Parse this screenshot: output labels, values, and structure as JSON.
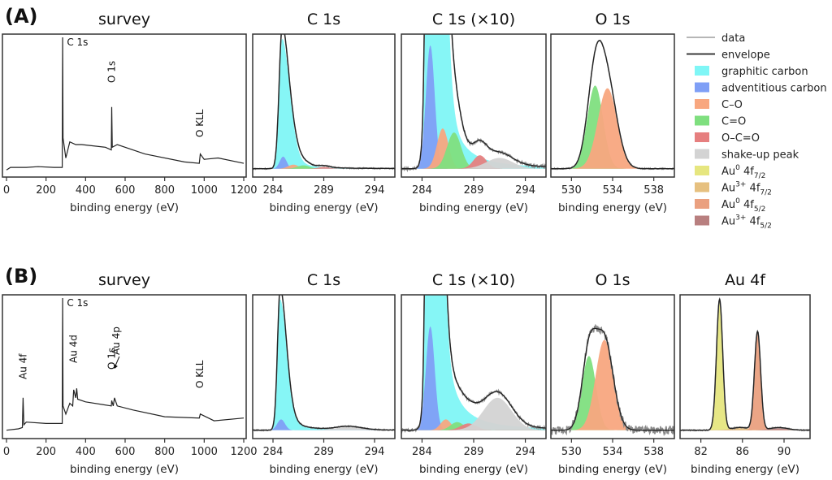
{
  "figure": {
    "rows": [
      {
        "label": "(A)"
      },
      {
        "label": "(B)"
      }
    ]
  },
  "legend": {
    "position": "right of row A",
    "items": [
      {
        "key": "data",
        "label": "data",
        "type": "line",
        "color": "#8a8a8a"
      },
      {
        "key": "envelope",
        "label": "envelope",
        "type": "line",
        "color": "#222222"
      },
      {
        "key": "graphitic",
        "label": "graphitic carbon",
        "type": "fill",
        "color": "#7ff6f6"
      },
      {
        "key": "adventitious",
        "label": "adventitious carbon",
        "type": "fill",
        "color": "#7f9ff6"
      },
      {
        "key": "CO",
        "label": "C–O",
        "type": "fill",
        "color": "#f8a77f"
      },
      {
        "key": "C=O",
        "label": "C=O",
        "type": "fill",
        "color": "#7fdf7f"
      },
      {
        "key": "OC=O",
        "label": "O–C=O",
        "type": "fill",
        "color": "#e67f7f"
      },
      {
        "key": "shakeup",
        "label": "shake-up peak",
        "type": "fill",
        "color": "#d3d3d3"
      },
      {
        "key": "Au0_72",
        "label": "Au",
        "sup": "0",
        "main": " 4f",
        "sub": "7/2",
        "type": "fill",
        "color": "#e6e67f"
      },
      {
        "key": "Au3_72",
        "label": "Au",
        "sup": "3+",
        "main": " 4f",
        "sub": "7/2",
        "type": "fill",
        "color": "#e6c07f"
      },
      {
        "key": "Au0_52",
        "label": "Au",
        "sup": "0",
        "main": " 4f",
        "sub": "5/2",
        "type": "fill",
        "color": "#eaa07f"
      },
      {
        "key": "Au3_52",
        "label": "Au",
        "sup": "3+",
        "main": " 4f",
        "sub": "5/2",
        "type": "fill",
        "color": "#b87f7f"
      }
    ]
  },
  "chart_data": [
    {
      "id": "A-survey",
      "row": "A",
      "type": "line",
      "title": "survey",
      "xlabel": "binding energy (eV)",
      "ylabel": "",
      "xlim": [
        0,
        1200
      ],
      "xticks": [
        0,
        200,
        400,
        600,
        800,
        1000,
        1200
      ],
      "grid": false,
      "annotations": [
        {
          "text": "C 1s",
          "x": 285
        },
        {
          "text": "O 1s",
          "x": 532,
          "rotated": true
        },
        {
          "text": "O KLL",
          "x": 978,
          "rotated": true
        }
      ],
      "series": [
        {
          "name": "data",
          "x": [
            0,
            20,
            100,
            160,
            240,
            282,
            284,
            286,
            300,
            320,
            350,
            380,
            500,
            530,
            532,
            535,
            560,
            700,
            900,
            975,
            980,
            1000,
            1070,
            1200
          ],
          "y": [
            0.01,
            0.03,
            0.03,
            0.035,
            0.03,
            0.03,
            1.0,
            0.25,
            0.1,
            0.22,
            0.2,
            0.2,
            0.18,
            0.16,
            0.48,
            0.18,
            0.2,
            0.13,
            0.07,
            0.06,
            0.13,
            0.09,
            0.1,
            0.06
          ]
        }
      ]
    },
    {
      "id": "A-C1s",
      "row": "A",
      "type": "area",
      "title": "C 1s",
      "xlabel": "binding energy (eV)",
      "xlim": [
        282,
        296
      ],
      "xticks": [
        284,
        289,
        294
      ],
      "grid": false,
      "components": [
        {
          "name": "graphitic carbon",
          "center": 284.9,
          "height": 0.97,
          "fwhm": 0.7,
          "asym": true
        },
        {
          "name": "adventitious carbon",
          "center": 285.0,
          "height": 0.09,
          "fwhm": 0.8
        },
        {
          "name": "C–O",
          "center": 286.0,
          "height": 0.03,
          "fwhm": 1.2
        },
        {
          "name": "C=O",
          "center": 287.0,
          "height": 0.025,
          "fwhm": 1.4
        },
        {
          "name": "O–C=O",
          "center": 289.0,
          "height": 0.012,
          "fwhm": 1.4
        }
      ]
    },
    {
      "id": "A-C1s-x10",
      "row": "A",
      "type": "area",
      "title": "C 1s (×10)",
      "xlabel": "binding energy (eV)",
      "xlim": [
        282,
        296
      ],
      "xticks": [
        284,
        289,
        294
      ],
      "grid": false,
      "components": [
        {
          "name": "graphitic carbon",
          "center": 284.9,
          "height": 9.7,
          "fwhm": 0.7,
          "asym": true
        },
        {
          "name": "adventitious carbon",
          "center": 284.8,
          "height": 0.92,
          "fwhm": 1.0
        },
        {
          "name": "C–O",
          "center": 286.0,
          "height": 0.3,
          "fwhm": 1.3
        },
        {
          "name": "C=O",
          "center": 287.1,
          "height": 0.27,
          "fwhm": 1.6
        },
        {
          "name": "O–C=O",
          "center": 289.6,
          "height": 0.1,
          "fwhm": 1.5
        },
        {
          "name": "shake-up peak",
          "center": 291.5,
          "height": 0.08,
          "fwhm": 3.0
        }
      ]
    },
    {
      "id": "A-O1s",
      "row": "A",
      "type": "area",
      "title": "O 1s",
      "xlabel": "binding energy (eV)",
      "xlim": [
        528,
        540
      ],
      "xticks": [
        530,
        534,
        538
      ],
      "grid": false,
      "components": [
        {
          "name": "C=O",
          "center": 532.3,
          "height": 0.62,
          "fwhm": 1.8
        },
        {
          "name": "C–O",
          "center": 533.5,
          "height": 0.6,
          "fwhm": 2.2
        }
      ]
    },
    {
      "id": "B-survey",
      "row": "B",
      "type": "line",
      "title": "survey",
      "xlabel": "binding energy (eV)",
      "xlim": [
        0,
        1200
      ],
      "xticks": [
        0,
        200,
        400,
        600,
        800,
        1000,
        1200
      ],
      "grid": false,
      "annotations": [
        {
          "text": "C 1s",
          "x": 285
        },
        {
          "text": "Au 4f",
          "x": 84,
          "rotated": true
        },
        {
          "text": "Au 4d",
          "x": 340,
          "rotated": true
        },
        {
          "text": "O 1s",
          "x": 532,
          "rotated": true
        },
        {
          "text": "Au 4p",
          "x": 546,
          "rotated": true,
          "arrow": true
        },
        {
          "text": "O KLL",
          "x": 978,
          "rotated": true
        }
      ],
      "series": [
        {
          "name": "data",
          "x": [
            0,
            60,
            80,
            84,
            88,
            100,
            200,
            282,
            284,
            286,
            300,
            320,
            335,
            340,
            350,
            355,
            360,
            400,
            530,
            532,
            540,
            546,
            560,
            640,
            800,
            975,
            980,
            1050,
            1200
          ],
          "y": [
            0.02,
            0.03,
            0.04,
            0.26,
            0.06,
            0.08,
            0.07,
            0.07,
            1.0,
            0.2,
            0.14,
            0.22,
            0.2,
            0.32,
            0.26,
            0.33,
            0.25,
            0.23,
            0.2,
            0.24,
            0.2,
            0.26,
            0.2,
            0.17,
            0.12,
            0.11,
            0.14,
            0.09,
            0.11
          ]
        }
      ]
    },
    {
      "id": "B-C1s",
      "row": "B",
      "type": "area",
      "title": "C 1s",
      "xlabel": "binding energy (eV)",
      "xlim": [
        282,
        296
      ],
      "xticks": [
        284,
        289,
        294
      ],
      "grid": false,
      "components": [
        {
          "name": "graphitic carbon",
          "center": 284.7,
          "height": 0.97,
          "fwhm": 0.6,
          "asym": true
        },
        {
          "name": "adventitious carbon",
          "center": 284.8,
          "height": 0.08,
          "fwhm": 0.9
        },
        {
          "name": "shake-up peak",
          "center": 291.5,
          "height": 0.025,
          "fwhm": 3.0
        }
      ]
    },
    {
      "id": "B-C1s-x10",
      "row": "B",
      "type": "area",
      "title": "C 1s (×10)",
      "xlabel": "binding energy (eV)",
      "xlim": [
        282,
        296
      ],
      "xticks": [
        284,
        289,
        294
      ],
      "grid": false,
      "components": [
        {
          "name": "graphitic carbon",
          "center": 284.8,
          "height": 9.7,
          "fwhm": 0.6,
          "asym": true
        },
        {
          "name": "adventitious carbon",
          "center": 284.8,
          "height": 0.77,
          "fwhm": 1.0
        },
        {
          "name": "C–O",
          "center": 286.3,
          "height": 0.08,
          "fwhm": 1.2
        },
        {
          "name": "C=O",
          "center": 287.4,
          "height": 0.06,
          "fwhm": 1.5
        },
        {
          "name": "O–C=O",
          "center": 288.5,
          "height": 0.05,
          "fwhm": 1.8
        },
        {
          "name": "shake-up peak",
          "center": 291.3,
          "height": 0.24,
          "fwhm": 3.2
        }
      ]
    },
    {
      "id": "B-O1s",
      "row": "B",
      "type": "area",
      "title": "O 1s",
      "xlabel": "binding energy (eV)",
      "xlim": [
        528,
        540
      ],
      "xticks": [
        530,
        534,
        538
      ],
      "grid": false,
      "components": [
        {
          "name": "C=O",
          "center": 531.7,
          "height": 0.55,
          "fwhm": 1.6
        },
        {
          "name": "C–O",
          "center": 533.2,
          "height": 0.67,
          "fwhm": 2.0
        }
      ]
    },
    {
      "id": "B-Au4f",
      "row": "B",
      "type": "area",
      "title": "Au 4f",
      "xlabel": "binding energy (eV)",
      "xlim": [
        80,
        92.5
      ],
      "xticks": [
        82,
        86,
        90
      ],
      "grid": false,
      "components": [
        {
          "name": "Au0 4f7/2",
          "center": 83.8,
          "height": 0.97,
          "fwhm": 0.7
        },
        {
          "name": "Au3+ 4f7/2",
          "center": 85.8,
          "height": 0.02,
          "fwhm": 2.0
        },
        {
          "name": "Au0 4f5/2",
          "center": 87.45,
          "height": 0.73,
          "fwhm": 0.7
        },
        {
          "name": "Au3+ 4f5/2",
          "center": 89.5,
          "height": 0.02,
          "fwhm": 2.0
        }
      ]
    }
  ]
}
